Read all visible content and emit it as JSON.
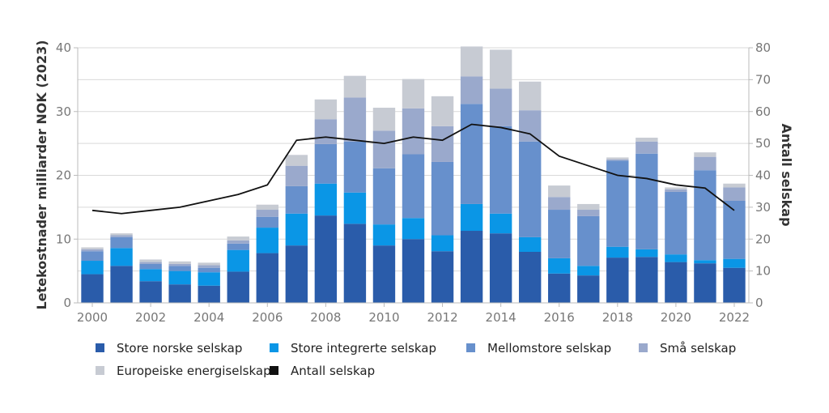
{
  "chart_data": {
    "type": "bar",
    "stacked": true,
    "years": [
      2000,
      2001,
      2002,
      2003,
      2004,
      2005,
      2006,
      2007,
      2008,
      2009,
      2010,
      2011,
      2012,
      2013,
      2014,
      2015,
      2016,
      2017,
      2018,
      2019,
      2020,
      2021,
      2022
    ],
    "x_ticks": [
      "2000",
      "2002",
      "2004",
      "2006",
      "2008",
      "2010",
      "2012",
      "2014",
      "2016",
      "2018",
      "2020",
      "2022"
    ],
    "ylabel": "Letekostnader milliarder NOK (2023)",
    "ylabel_right": "Antall selskap",
    "ylim": [
      0,
      40
    ],
    "ylim_right": [
      0,
      80
    ],
    "y_ticks": [
      "0",
      "10",
      "20",
      "30",
      "40"
    ],
    "y_ticks_right": [
      "0",
      "10",
      "20",
      "30",
      "40",
      "50",
      "60",
      "70",
      "80"
    ],
    "grid": "horizontal",
    "legend_position": "bottom",
    "series": [
      {
        "name": "Store norske selskap",
        "color": "#2a5caa",
        "values": [
          4.5,
          5.8,
          3.4,
          2.9,
          2.7,
          4.9,
          7.8,
          9.0,
          13.7,
          12.4,
          9.0,
          10.0,
          8.1,
          11.3,
          10.9,
          8.0,
          4.6,
          4.3,
          7.1,
          7.2,
          6.4,
          6.2,
          5.5
        ]
      },
      {
        "name": "Store integrerte selskap",
        "color": "#0a96e6",
        "values": [
          2.1,
          2.8,
          1.9,
          2.1,
          2.1,
          3.4,
          4.0,
          5.0,
          5.0,
          4.9,
          3.3,
          3.3,
          2.5,
          4.2,
          3.1,
          2.3,
          2.4,
          1.5,
          1.7,
          1.2,
          1.2,
          0.5,
          1.4
        ]
      },
      {
        "name": "Mellomstore selskap",
        "color": "#6790cc",
        "values": [
          1.5,
          1.7,
          0.8,
          0.8,
          0.7,
          1.0,
          1.7,
          4.3,
          6.2,
          8.0,
          8.8,
          10.0,
          11.5,
          15.7,
          13.7,
          15.0,
          7.6,
          7.8,
          13.5,
          15.0,
          9.8,
          14.1,
          9.1
        ]
      },
      {
        "name": "Små selskap",
        "color": "#9aa9cc",
        "values": [
          0.3,
          0.3,
          0.3,
          0.3,
          0.4,
          0.5,
          1.1,
          3.2,
          3.9,
          6.9,
          5.9,
          7.2,
          5.6,
          4.3,
          5.9,
          4.9,
          2.0,
          1.0,
          0.2,
          1.9,
          0.4,
          2.1,
          2.1
        ]
      },
      {
        "name": "Europeiske energiselskap",
        "color": "#c7cbd3",
        "values": [
          0.3,
          0.3,
          0.4,
          0.4,
          0.4,
          0.6,
          0.8,
          1.7,
          3.1,
          3.4,
          3.6,
          4.6,
          4.7,
          4.7,
          6.1,
          4.5,
          1.8,
          0.9,
          0.3,
          0.6,
          0.3,
          0.7,
          0.6
        ]
      }
    ],
    "line_series": {
      "name": "Antall selskap",
      "color": "#111111",
      "axis": "right",
      "values": [
        29,
        28,
        29,
        30,
        32,
        34,
        37,
        51,
        52,
        51,
        50,
        52,
        51,
        56,
        55,
        53,
        46,
        43,
        40,
        39,
        37,
        36,
        29
      ]
    }
  }
}
